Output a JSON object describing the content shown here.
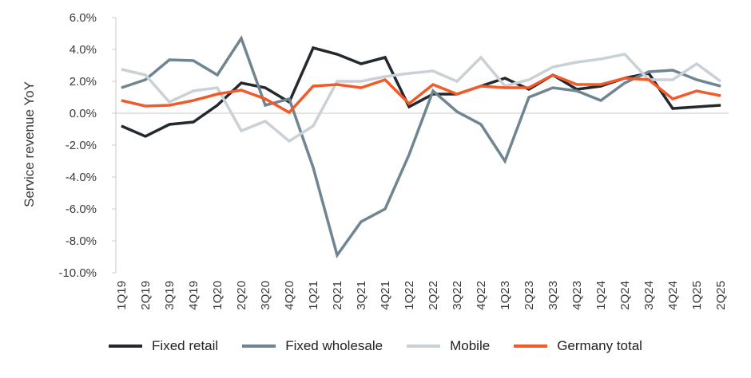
{
  "chart_data": {
    "type": "line",
    "ylabel": "Service revenue YoY",
    "ylim": [
      -10,
      6
    ],
    "yticks": [
      6,
      4,
      2,
      0,
      -2,
      -4,
      -6,
      -8,
      -10
    ],
    "ytick_labels": [
      "6.0%",
      "4.0%",
      "2.0%",
      "0.0%",
      "-2.0%",
      "-4.0%",
      "-6.0%",
      "-8.0%",
      "-10.0%"
    ],
    "categories": [
      "1Q19",
      "2Q19",
      "3Q19",
      "4Q19",
      "1Q20",
      "2Q20",
      "3Q20",
      "4Q20",
      "1Q21",
      "2Q21",
      "3Q21",
      "4Q21",
      "1Q22",
      "2Q22",
      "3Q22",
      "4Q22",
      "1Q23",
      "2Q23",
      "3Q23",
      "4Q23",
      "1Q24",
      "2Q24",
      "3Q24",
      "4Q24",
      "1Q25",
      "2Q25"
    ],
    "grid": false,
    "legend_position": "bottom",
    "series": [
      {
        "name": "Fixed retail",
        "color": "#23292e",
        "values": [
          -0.8,
          -1.45,
          -0.7,
          -0.55,
          0.5,
          1.9,
          1.6,
          0.7,
          4.1,
          3.7,
          3.1,
          3.5,
          0.4,
          1.2,
          1.2,
          1.7,
          2.2,
          1.5,
          2.4,
          1.5,
          1.7,
          2.2,
          2.5,
          0.3,
          0.4,
          0.5
        ]
      },
      {
        "name": "Fixed wholesale",
        "color": "#6f8591",
        "values": [
          1.6,
          2.1,
          3.35,
          3.3,
          2.4,
          4.7,
          0.5,
          0.9,
          -3.4,
          -8.9,
          -6.8,
          -6.0,
          -2.6,
          1.4,
          0.1,
          -0.7,
          -3.0,
          1.0,
          1.6,
          1.4,
          0.8,
          1.9,
          2.6,
          2.7,
          2.1,
          1.7
        ]
      },
      {
        "name": "Mobile",
        "color": "#c9d1d6",
        "values": [
          2.75,
          2.4,
          0.7,
          1.4,
          1.6,
          -1.1,
          -0.5,
          -1.75,
          -0.8,
          2.0,
          2.0,
          2.3,
          2.5,
          2.65,
          2.0,
          3.5,
          1.7,
          2.1,
          2.9,
          3.2,
          3.4,
          3.7,
          2.1,
          2.1,
          3.1,
          2.0
        ]
      },
      {
        "name": "Germany total",
        "color": "#f15a29",
        "values": [
          0.8,
          0.45,
          0.5,
          0.8,
          1.2,
          1.45,
          0.9,
          0.05,
          1.7,
          1.8,
          1.6,
          2.1,
          0.6,
          1.8,
          1.2,
          1.7,
          1.6,
          1.6,
          2.4,
          1.8,
          1.8,
          2.2,
          2.1,
          0.9,
          1.4,
          1.1
        ]
      }
    ]
  }
}
